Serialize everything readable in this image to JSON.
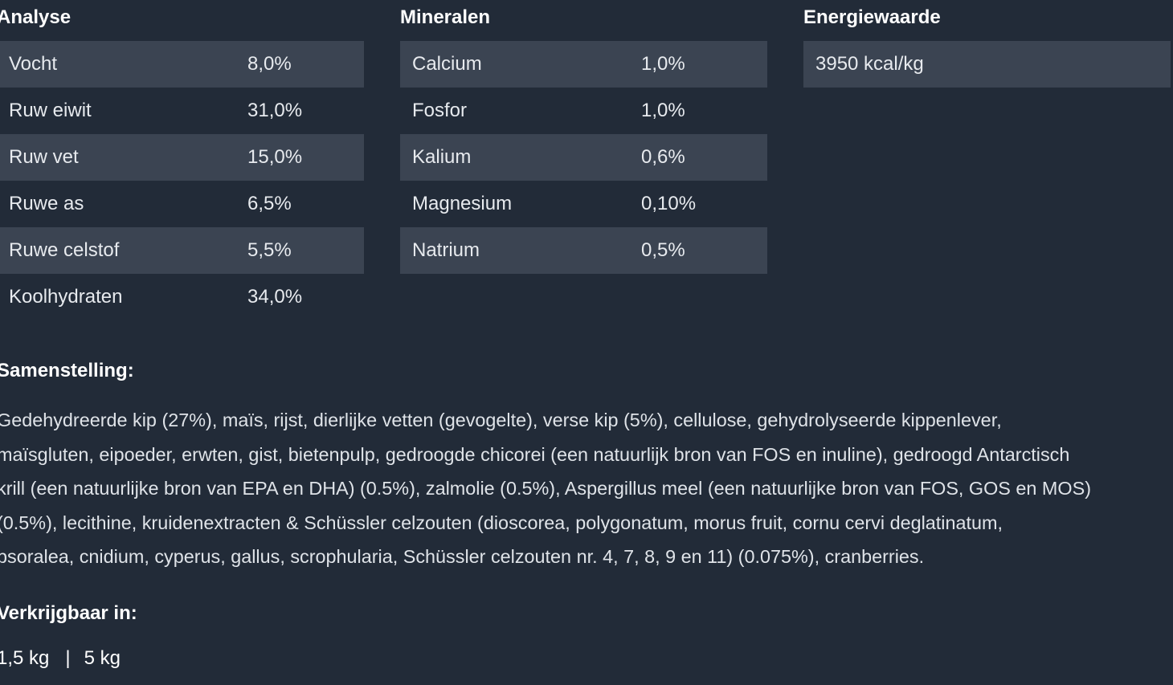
{
  "analyse": {
    "title": "Analyse",
    "rows": [
      {
        "label": "Vocht",
        "value": "8,0%"
      },
      {
        "label": "Ruw eiwit",
        "value": "31,0%"
      },
      {
        "label": "Ruw vet",
        "value": "15,0%"
      },
      {
        "label": "Ruwe as",
        "value": "6,5%"
      },
      {
        "label": "Ruwe celstof",
        "value": "5,5%"
      },
      {
        "label": "Koolhydraten",
        "value": "34,0%"
      }
    ]
  },
  "mineralen": {
    "title": "Mineralen",
    "rows": [
      {
        "label": "Calcium",
        "value": "1,0%"
      },
      {
        "label": "Fosfor",
        "value": "1,0%"
      },
      {
        "label": "Kalium",
        "value": "0,6%"
      },
      {
        "label": "Magnesium",
        "value": "0,10%"
      },
      {
        "label": "Natrium",
        "value": "0,5%"
      }
    ]
  },
  "energie": {
    "title": "Energiewaarde",
    "value": "3950 kcal/kg"
  },
  "samenstelling": {
    "title": "Samenstelling:",
    "lines": [
      "Gedehydreerde kip (27%), maïs, rijst, dierlijke vetten (gevogelte), verse kip (5%), cellulose, gehydrolyseerde kippenlever,",
      "maïsgluten, eipoeder, erwten, gist, bietenpulp, gedroogde chicorei (een natuurlijk bron van FOS en inuline), gedroogd Antarctisch",
      "krill (een natuurlijke bron van EPA en DHA) (0.5%), zalmolie (0.5%), Aspergillus meel (een natuurlijke bron van FOS, GOS en MOS)",
      "(0.5%), lecithine, kruidenextracten & Schüssler celzouten (dioscorea, polygonatum, morus fruit, cornu cervi deglatinatum,",
      "psoralea, cnidium, cyperus, gallus, scrophularia, Schüssler celzouten nr. 4, 7, 8, 9 en 11) (0.075%), cranberries."
    ]
  },
  "verkrijgbaar": {
    "title": "Verkrijgbaar in:",
    "sizes": [
      "1,5 kg",
      "5 kg"
    ],
    "separator": "|"
  }
}
